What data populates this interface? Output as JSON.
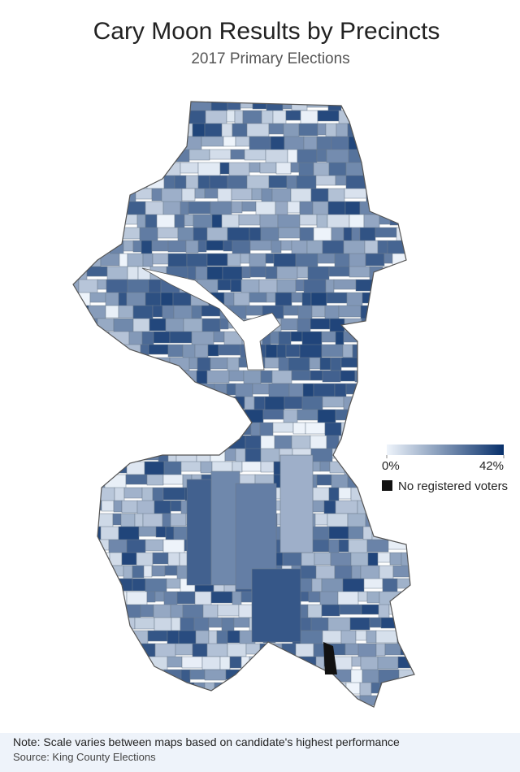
{
  "title": "Cary Moon Results by Precincts",
  "subtitle": "2017 Primary Elections",
  "legend": {
    "min": {
      "value": 0,
      "label": "0%"
    },
    "max": {
      "value": 42,
      "label": "42%"
    },
    "color_low": "#eef4fb",
    "color_high": "#08306b",
    "no_data_label": "No registered voters",
    "no_data_color": "#111111"
  },
  "note": "Note: Scale varies between maps based on candidate's highest performance",
  "source": "Source: King County Elections"
}
